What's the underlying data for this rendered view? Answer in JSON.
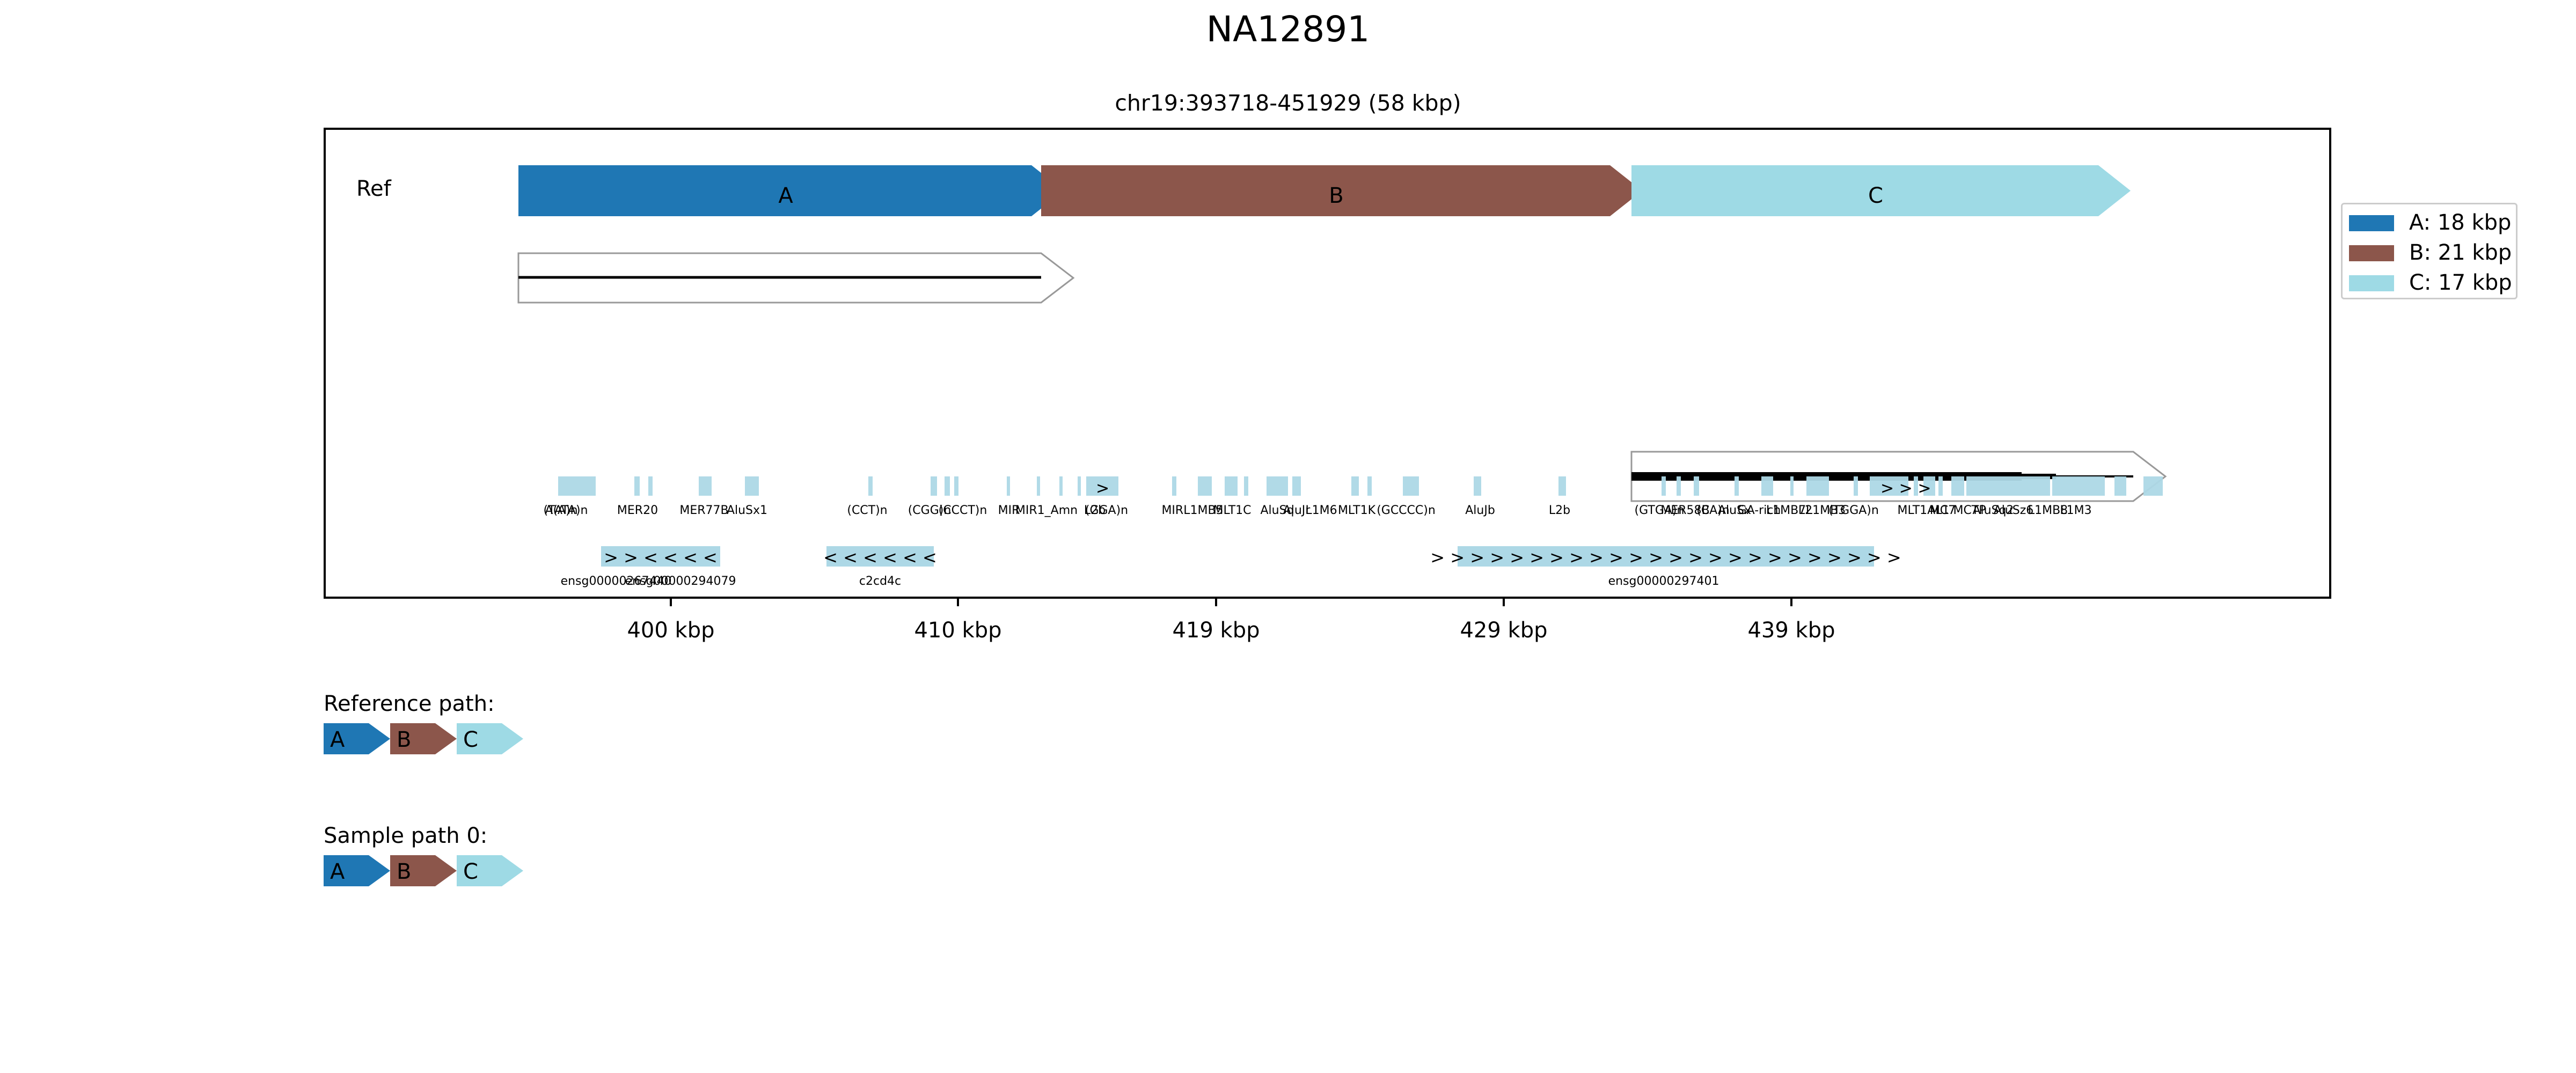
{
  "title": "NA12891",
  "subtitle": "chr19:393718-451929 (58 kbp)",
  "track_label": "Ref",
  "segments": [
    {
      "label": "A",
      "color": "#1f77b4"
    },
    {
      "label": "B",
      "color": "#8c564b"
    },
    {
      "label": "C",
      "color": "#9edae5"
    }
  ],
  "legend": [
    {
      "label": "A: 18 kbp",
      "color": "#1f77b4"
    },
    {
      "label": "B: 21 kbp",
      "color": "#8c564b"
    },
    {
      "label": "C: 17 kbp",
      "color": "#9edae5"
    }
  ],
  "x_ticks": [
    "400 kbp",
    "410 kbp",
    "419 kbp",
    "429 kbp",
    "439 kbp"
  ],
  "repeats": {
    "color": "#add8e6",
    "labels": [
      "A(A)n",
      "(TATA)n",
      "MER20",
      "MER77B",
      "AluSx1",
      "(CCT)n",
      "(CGG)n",
      "(CCCT)n",
      "MIR",
      "MIR1_Amn",
      "L2b",
      "(GGA)n",
      "MIRL1MB5",
      "MLT1C",
      "AluSq",
      "AluJr",
      "L1M6",
      "MLT1K",
      "(GCCCC)n",
      "AluJb",
      "L2b",
      "(GTGA)n",
      "MER58B",
      "(CA)n",
      "AluSx",
      "GA-rich",
      "L1MB7",
      "L2",
      "L1MB3",
      "(TGGA)n",
      "MLT1AL1",
      "MC7",
      "MCTP",
      "AluSq2",
      "AluSz6",
      "L1MB8",
      "L1M3"
    ]
  },
  "genes": [
    {
      "label": "ensg00000267440",
      "arrows": "> > < < < <"
    },
    {
      "label": "ensg00000294079",
      "arrows": ""
    },
    {
      "label": "c2cd4c",
      "arrows": "< < < < < <"
    },
    {
      "label": "ensg00000297401",
      "arrows": "> > > > > > > > > > > > > > > > > > > > > > > >"
    }
  ],
  "paths": [
    {
      "title": "Reference path:",
      "segments": [
        "A",
        "B",
        "C"
      ]
    },
    {
      "title": "Sample path 0:",
      "segments": [
        "A",
        "B",
        "C"
      ]
    }
  ]
}
